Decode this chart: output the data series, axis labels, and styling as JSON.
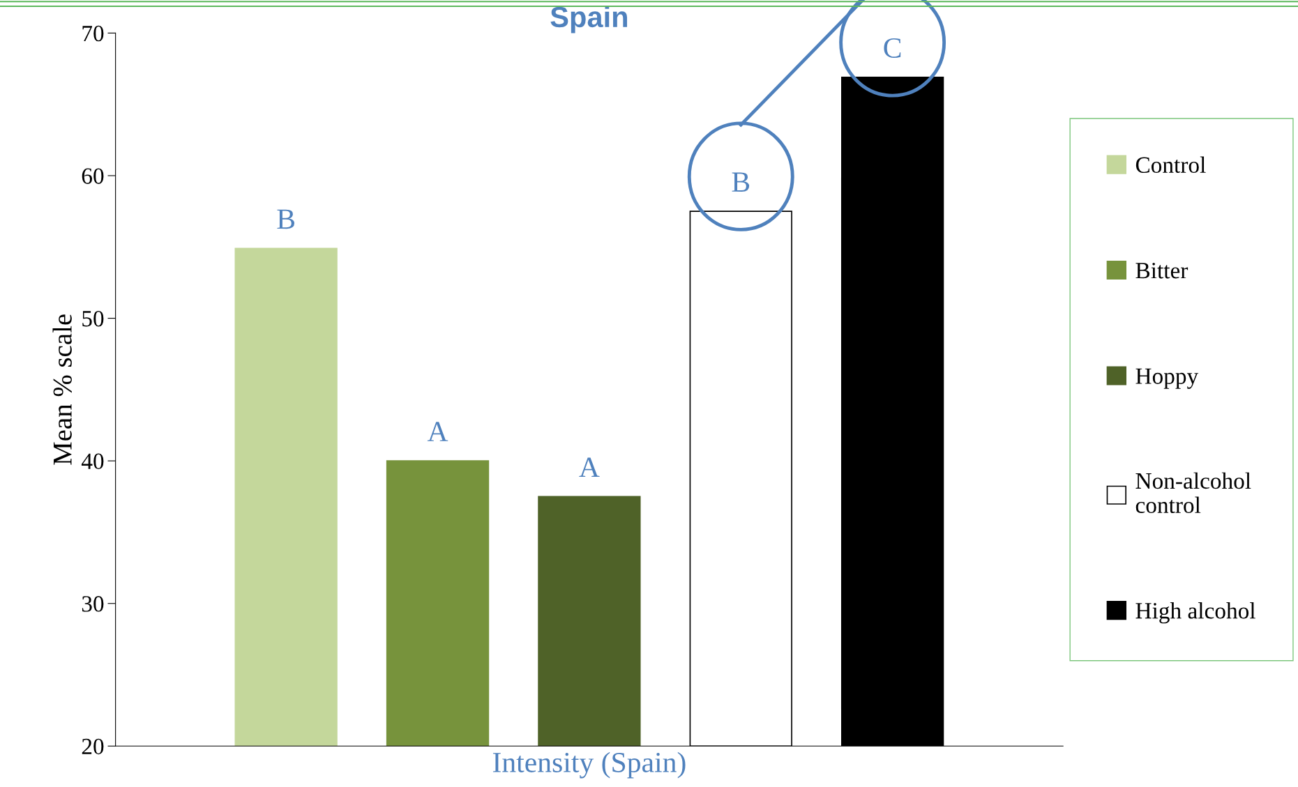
{
  "chart_data": {
    "type": "bar",
    "title": "Spain",
    "ylabel": "Mean % scale",
    "categories": [
      "Intensity (Spain)"
    ],
    "series": [
      {
        "name": "Control",
        "color": "#c4d79b",
        "values": [
          54.9
        ]
      },
      {
        "name": "Bitter",
        "color": "#77933c",
        "values": [
          40
        ]
      },
      {
        "name": "Hoppy",
        "color": "#4f6228",
        "values": [
          37.5
        ]
      },
      {
        "name": "Non-alcohol control",
        "color": "#ffffff",
        "values": [
          57.5
        ]
      },
      {
        "name": "High alcohol",
        "color": "#000000",
        "values": [
          66.9
        ]
      }
    ],
    "annotations": [
      "B",
      "A",
      "A",
      "B",
      "C"
    ],
    "ylim": [
      20,
      70
    ],
    "yticks": [
      20,
      30,
      40,
      50,
      60,
      70
    ],
    "grid": false,
    "legend": "right"
  }
}
